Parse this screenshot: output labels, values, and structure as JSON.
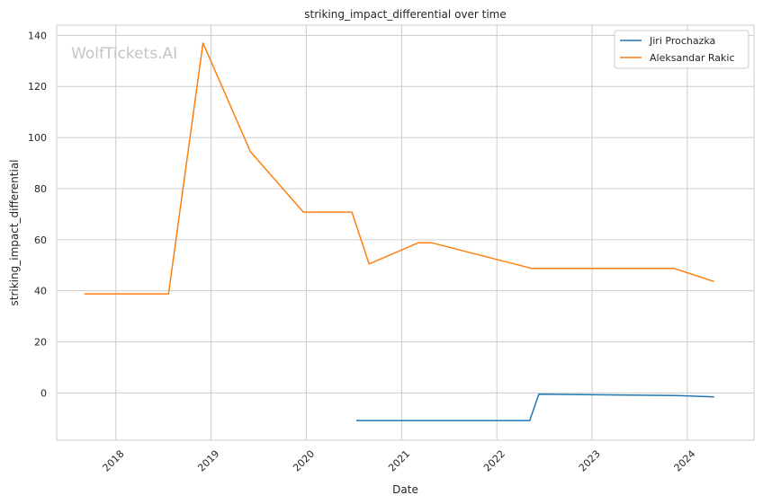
{
  "chart_data": {
    "type": "line",
    "title": "striking_impact_differential over time",
    "xlabel": "Date",
    "ylabel": "striking_impact_differential",
    "watermark": "WolfTickets.AI",
    "x_ticks": [
      "2018",
      "2019",
      "2020",
      "2021",
      "2022",
      "2023",
      "2024"
    ],
    "xlim": [
      "2017-05-19",
      "2024-09-13"
    ],
    "y_ticks": [
      0,
      20,
      40,
      60,
      80,
      100,
      120,
      140
    ],
    "ylim": [
      -18.5,
      144
    ],
    "grid": true,
    "legend_position": "top-right",
    "series": [
      {
        "name": "Jiri Prochazka",
        "color": "#1f77b4",
        "points": [
          {
            "x": "2020-07-11",
            "y": -10.8
          },
          {
            "x": "2022-05-07",
            "y": -10.8
          },
          {
            "x": "2022-06-11",
            "y": -0.5
          },
          {
            "x": "2023-11-11",
            "y": -1.0
          },
          {
            "x": "2024-04-13",
            "y": -1.5
          }
        ]
      },
      {
        "name": "Aleksandar Rakic",
        "color": "#ff7f0e",
        "points": [
          {
            "x": "2017-09-02",
            "y": 38.8
          },
          {
            "x": "2018-07-22",
            "y": 38.8
          },
          {
            "x": "2018-12-01",
            "y": 137.0
          },
          {
            "x": "2019-06-01",
            "y": 94.5
          },
          {
            "x": "2019-12-21",
            "y": 70.8
          },
          {
            "x": "2020-06-24",
            "y": 70.8
          },
          {
            "x": "2020-08-29",
            "y": 50.5
          },
          {
            "x": "2021-03-06",
            "y": 58.8
          },
          {
            "x": "2021-04-25",
            "y": 58.8
          },
          {
            "x": "2022-05-14",
            "y": 48.8
          },
          {
            "x": "2023-11-11",
            "y": 48.8
          },
          {
            "x": "2024-04-13",
            "y": 43.6
          }
        ]
      }
    ]
  }
}
